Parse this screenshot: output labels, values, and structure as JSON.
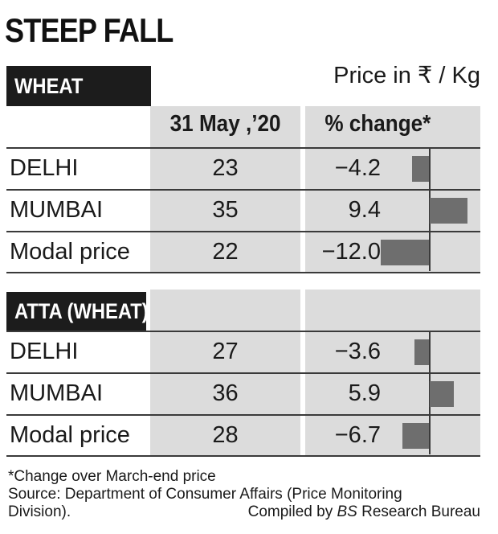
{
  "title": "STEEP FALL",
  "units": "Price in ₹ / Kg",
  "headers": {
    "price": "31 May ,’20",
    "change": "% change*"
  },
  "chart_data": [
    {
      "type": "bar",
      "title": "WHEAT",
      "categories": [
        "DELHI",
        "MUMBAI",
        "Modal price"
      ],
      "series": [
        {
          "name": "31 May ,’20",
          "values": [
            23,
            35,
            22
          ]
        },
        {
          "name": "% change*",
          "values": [
            -4.2,
            9.4,
            -12.0
          ]
        }
      ],
      "value_labels": [
        "−4.2",
        "9.4",
        "−12.0"
      ],
      "price_labels": [
        "23",
        "35",
        "22"
      ],
      "ylim": [
        -12.0,
        9.4
      ]
    },
    {
      "type": "bar",
      "title": "ATTA (WHEAT)",
      "categories": [
        "DELHI",
        "MUMBAI",
        "Modal price"
      ],
      "series": [
        {
          "name": "31 May ,’20",
          "values": [
            27,
            36,
            28
          ]
        },
        {
          "name": "% change*",
          "values": [
            -3.6,
            5.9,
            -6.7
          ]
        }
      ],
      "value_labels": [
        "−3.6",
        "5.9",
        "−6.7"
      ],
      "price_labels": [
        "27",
        "36",
        "28"
      ],
      "ylim": [
        -12.0,
        9.4
      ]
    }
  ],
  "footer": {
    "note": "*Change over March-end price",
    "source_line1": "Source:  Department of Consumer Affairs (Price Monitoring",
    "source_line2": "Division).",
    "credit_prefix": "Compiled by ",
    "credit_italic": "BS",
    "credit_suffix": " Research Bureau"
  },
  "colors": {
    "bar": "#6e6e6e",
    "band": "#dcdcdc",
    "label_bg": "#1c1c1c"
  }
}
